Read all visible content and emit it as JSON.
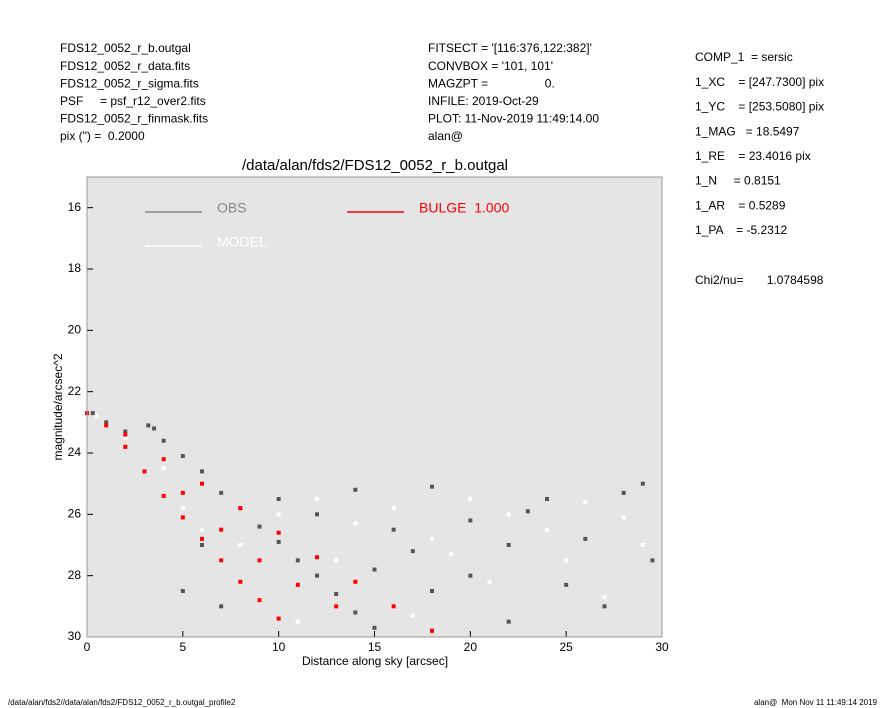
{
  "header_left": [
    "FDS12_0052_r_b.outgal",
    "FDS12_0052_r_data.fits",
    "FDS12_0052_r_sigma.fits",
    "PSF     = psf_r12_over2.fits",
    "FDS12_0052_r_finmask.fits",
    "pix (\") =  0.2000"
  ],
  "header_middle": [
    "FITSECT = '[116:376,122:382]'",
    "CONVBOX = '101, 101'",
    "MAGZPT =                 0.",
    "INFILE: 2019-Oct-29",
    "PLOT: 11-Nov-2019 11:49:14.00",
    "alan@"
  ],
  "header_right": [
    "COMP_1  = sersic",
    "1_XC    = [247.7300] pix",
    "1_YC    = [253.5080] pix",
    "1_MAG   = 18.5497",
    "1_RE    = 23.4016 pix",
    "1_N     = 0.8151",
    "1_AR    = 0.5289",
    "1_PA    = -5.2312"
  ],
  "chi2": "Chi2/nu=       1.0784598",
  "footer_left": "/data/alan/fds2//data/alan/fds2/FDS12_0052_r_b.outgal_profile2",
  "footer_right": "alan@  Mon Nov 11 11:49:14 2019",
  "chart_data": {
    "type": "scatter",
    "title": "/data/alan/fds2/FDS12_0052_r_b.outgal",
    "x_label": "Distance along sky [arcsec]",
    "y_label": "magnitude/arcsec^2",
    "xlim": [
      0,
      30
    ],
    "ylim": [
      30,
      15
    ],
    "xticks": [
      0,
      5,
      10,
      15,
      20,
      25,
      30
    ],
    "yticks": [
      16,
      18,
      20,
      22,
      24,
      26,
      28,
      30
    ],
    "background": "#e5e5e5",
    "series": [
      {
        "name": "OBS",
        "color": "#555555",
        "x": [
          0.3,
          1,
          2,
          3.2,
          3.5,
          4,
          5,
          6,
          7,
          8,
          9,
          10,
          11,
          12,
          13,
          14,
          15,
          10,
          12,
          14,
          16,
          18,
          20,
          22,
          24,
          26,
          28,
          29.5,
          27,
          22,
          18,
          25,
          15,
          20,
          29,
          23,
          17,
          6,
          7,
          5
        ],
        "values": [
          22.7,
          23,
          23.3,
          23.1,
          23.2,
          23.6,
          24.1,
          24.6,
          25.3,
          25.8,
          26.4,
          26.9,
          27.5,
          28,
          28.6,
          29.2,
          29.7,
          25.5,
          26,
          25.2,
          26.5,
          25.1,
          26.2,
          27,
          25.5,
          26.8,
          25.3,
          27.5,
          29,
          29.5,
          28.5,
          28.3,
          27.8,
          28,
          25,
          25.9,
          27.2,
          27,
          29,
          28.5
        ]
      },
      {
        "name": "MODEL",
        "color": "#ffffff",
        "x": [
          0.5,
          2,
          4,
          5,
          6,
          8,
          10,
          12,
          14,
          16,
          18,
          20,
          22,
          24,
          26,
          28,
          29,
          25,
          21,
          17,
          13,
          9,
          19,
          27,
          11
        ],
        "values": [
          22.8,
          23.5,
          24.5,
          25.8,
          26.5,
          27,
          26,
          25.5,
          26.3,
          25.8,
          26.8,
          25.5,
          26,
          26.5,
          25.6,
          26.1,
          27,
          27.5,
          28.2,
          29.3,
          27.5,
          28.8,
          27.3,
          28.7,
          29.5
        ]
      },
      {
        "name": "BULGE  1.000",
        "color": "#ff0000",
        "x": [
          0,
          2,
          4,
          6,
          8,
          10,
          12,
          14,
          16,
          18,
          1,
          2,
          3,
          4,
          5,
          6,
          7,
          8,
          9,
          10,
          5,
          7,
          9,
          11,
          13
        ],
        "values": [
          22.7,
          23.4,
          24.2,
          25,
          25.8,
          26.6,
          27.4,
          28.2,
          29,
          29.8,
          23.1,
          23.8,
          24.6,
          25.4,
          26.1,
          26.8,
          27.5,
          28.2,
          28.8,
          29.4,
          25.3,
          26.5,
          27.5,
          28.3,
          29
        ]
      }
    ]
  }
}
